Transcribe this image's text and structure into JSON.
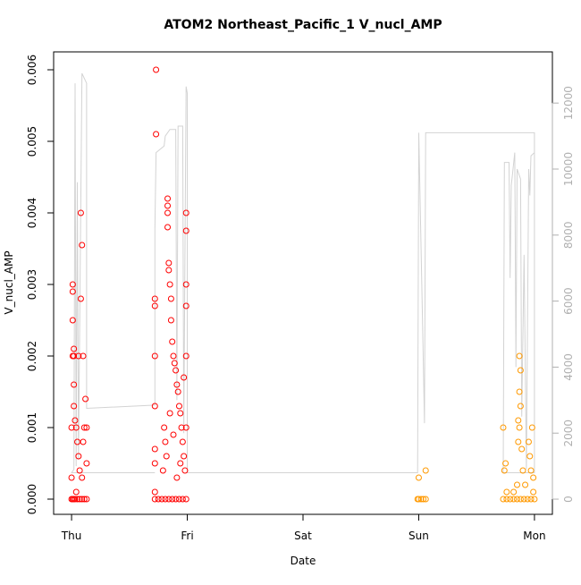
{
  "chart_data": {
    "type": "scatter",
    "title": "ATOM2 Northeast_Pacific_1 V_nucl_AMP",
    "xlabel": "Date",
    "ylabel": "V_nucl_AMP",
    "xlim": [
      -0.155,
      4.155
    ],
    "xticks": [
      {
        "value": 0,
        "label": "Thu"
      },
      {
        "value": 1,
        "label": "Fri"
      },
      {
        "value": 2,
        "label": "Sat"
      },
      {
        "value": 3,
        "label": "Sun"
      },
      {
        "value": 4,
        "label": "Mon"
      }
    ],
    "ylim": [
      -0.0002125,
      0.00625
    ],
    "yticks": [
      {
        "value": 0,
        "label": "0.000"
      },
      {
        "value": 0.001,
        "label": "0.001"
      },
      {
        "value": 0.002,
        "label": "0.002"
      },
      {
        "value": 0.003,
        "label": "0.003"
      },
      {
        "value": 0.004,
        "label": "0.004"
      },
      {
        "value": 0.005,
        "label": "0.005"
      },
      {
        "value": 0.006,
        "label": "0.006"
      }
    ],
    "y2lim": [
      -460,
      13550
    ],
    "y2ticks": [
      0,
      2000,
      4000,
      6000,
      8000,
      10000,
      12000
    ],
    "y2color": "#b0b0b0",
    "series": [
      {
        "color": "#ff0000",
        "x": [
          0.0,
          0.01,
          0.02,
          0.03,
          0.05,
          0.07,
          0.09,
          0.11,
          0.13,
          0.0,
          0.0,
          0.01,
          0.01,
          0.01,
          0.01,
          0.02,
          0.02,
          0.02,
          0.03,
          0.04,
          0.05,
          0.06,
          0.07,
          0.08,
          0.08,
          0.09,
          0.1,
          0.11,
          0.12,
          0.13,
          0.13,
          0.1,
          0.06,
          0.02,
          0.04,
          0.09,
          0.73,
          0.73,
          0.72,
          0.72,
          0.72,
          0.72,
          0.72,
          0.72,
          0.72,
          0.72,
          0.75,
          0.78,
          0.81,
          0.84,
          0.87,
          0.9,
          0.93,
          0.96,
          0.99,
          0.83,
          0.83,
          0.83,
          0.83,
          0.84,
          0.84,
          0.85,
          0.86,
          0.86,
          0.87,
          0.88,
          0.89,
          0.9,
          0.91,
          0.92,
          0.93,
          0.94,
          0.95,
          0.96,
          0.97,
          0.98,
          0.99,
          0.99,
          0.99,
          0.99,
          0.99,
          0.99,
          0.8,
          0.81,
          0.82,
          0.79,
          0.85,
          0.88,
          0.91,
          0.94,
          0.97
        ],
        "values": [
          0,
          0,
          0,
          0,
          0,
          0,
          0,
          0,
          0,
          0.0003,
          0.001,
          0.0029,
          0.003,
          0.0025,
          0.002,
          0.0021,
          0.0016,
          0.0013,
          0.0011,
          0.001,
          0.0008,
          0.0006,
          0.0004,
          0.004,
          0.0028,
          0.00355,
          0.0008,
          0.001,
          0.0014,
          0.001,
          0.0005,
          0.002,
          0.002,
          0.002,
          0.0001,
          0.0003,
          0.006,
          0.0051,
          0.0028,
          0.0027,
          0.002,
          0.0013,
          0.0007,
          0.0005,
          0.0001,
          0,
          0,
          0,
          0,
          0,
          0,
          0,
          0,
          0,
          0,
          0.0042,
          0.0041,
          0.004,
          0.0038,
          0.0033,
          0.0032,
          0.003,
          0.0028,
          0.0025,
          0.0022,
          0.002,
          0.0019,
          0.0018,
          0.0016,
          0.0015,
          0.0013,
          0.0012,
          0.001,
          0.0008,
          0.0006,
          0.0004,
          0.004,
          0.00375,
          0.003,
          0.0027,
          0.002,
          0.001,
          0.001,
          0.0008,
          0.0006,
          0.0004,
          0.0012,
          0.0009,
          0.0003,
          0.0005,
          0.0017
        ]
      },
      {
        "color": "#ff9900",
        "x": [
          2.99,
          3.0,
          3.02,
          3.04,
          3.06,
          3.0,
          3.06,
          3.73,
          3.76,
          3.79,
          3.82,
          3.85,
          3.88,
          3.91,
          3.94,
          3.97,
          4.0,
          3.73,
          3.74,
          3.75,
          3.76,
          3.82,
          3.85,
          3.86,
          3.86,
          3.87,
          3.87,
          3.88,
          3.88,
          3.87,
          3.89,
          3.9,
          3.92,
          3.95,
          3.96,
          3.97,
          3.98,
          3.99,
          3.99
        ],
        "values": [
          0,
          0,
          0,
          0,
          0,
          0.0003,
          0.0004,
          0,
          0,
          0,
          0,
          0,
          0,
          0,
          0,
          0,
          0,
          0.001,
          0.0004,
          0.0005,
          0.0001,
          0.0001,
          0.0002,
          0.0008,
          0.0011,
          0.0015,
          0.002,
          0.0018,
          0.0013,
          0.001,
          0.0007,
          0.0004,
          0.0002,
          0.0008,
          0.0006,
          0.0004,
          0.001,
          0.0003,
          0.0001
        ]
      },
      {
        "type": "line",
        "axis": "y2",
        "color": "#d3d3d3",
        "x": [
          0.72,
          0,
          0.02,
          0.03,
          0.04,
          0.05,
          0.06,
          0.09,
          0.13,
          0.13,
          0.72,
          0.72,
          0.73,
          0.8,
          0.81,
          0.85,
          0.9,
          0.91,
          0.92,
          0.96,
          0.97,
          0.99,
          1.0,
          1.0,
          2.99,
          3.0,
          3.03,
          3.05,
          3.06,
          4.0,
          4.0,
          3.73,
          3.74,
          3.78,
          3.79,
          3.8,
          3.83,
          3.84,
          3.85,
          3.88,
          3.89,
          3.91,
          3.93,
          3.95,
          3.96,
          3.97,
          4.0
        ],
        "values": [
          800,
          800,
          900,
          12600,
          1000,
          9600,
          1200,
          12900,
          12600,
          2750,
          2850,
          8200,
          10500,
          10700,
          11000,
          11200,
          11200,
          3000,
          11300,
          11300,
          2000,
          12500,
          12300,
          800,
          800,
          11100,
          5800,
          2300,
          11100,
          11100,
          800,
          800,
          10200,
          10200,
          6700,
          9500,
          10500,
          4000,
          10000,
          9700,
          2500,
          7400,
          900,
          10000,
          9200,
          10400,
          10500
        ]
      }
    ]
  }
}
